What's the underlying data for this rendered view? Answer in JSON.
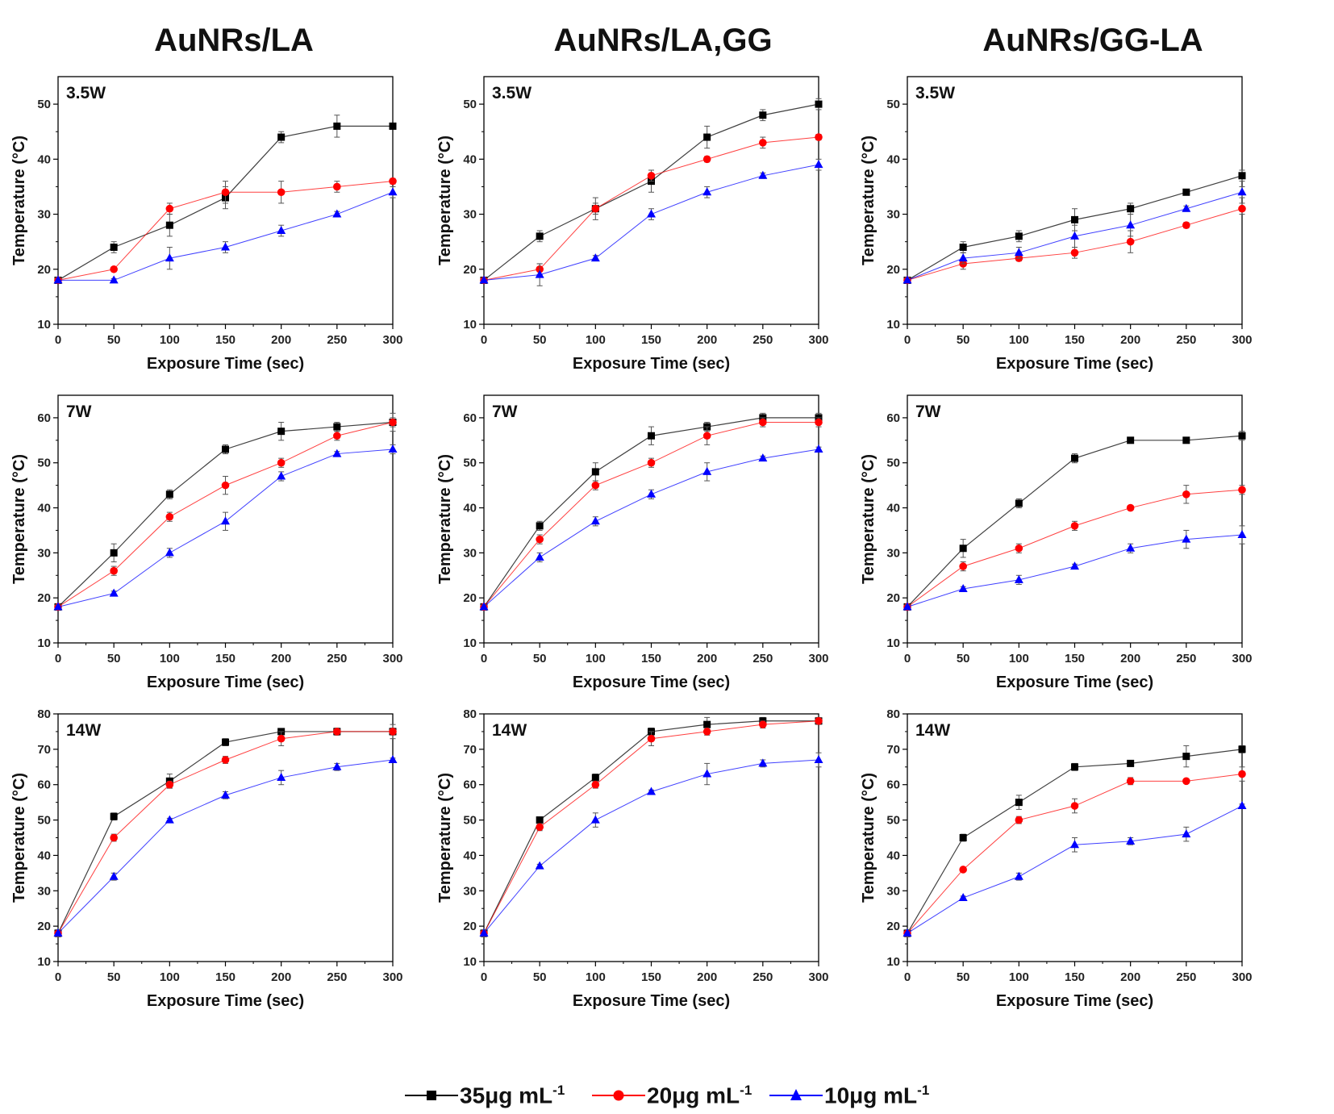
{
  "column_titles": [
    "AuNRs/LA",
    "AuNRs/LA,GG",
    "AuNRs/GG-LA"
  ],
  "legend": [
    {
      "label": "35μg mL",
      "sup": "-1",
      "color": "#000000",
      "marker": "square"
    },
    {
      "label": "20μg mL",
      "sup": "-1",
      "color": "#ff0000",
      "marker": "circle"
    },
    {
      "label": "10μg mL",
      "sup": "-1",
      "color": "#0000ff",
      "marker": "triangle"
    }
  ],
  "chart_data": [
    {
      "type": "line",
      "title": "AuNRs/LA",
      "panel_label": "3.5W",
      "xlabel": "Exposure Time (sec)",
      "ylabel": "Temperature (°C)",
      "x": [
        0,
        50,
        100,
        150,
        200,
        250,
        300
      ],
      "xlim": [
        0,
        300
      ],
      "ylim": [
        10,
        55
      ],
      "yticks": [
        10,
        20,
        30,
        40,
        50
      ],
      "series": [
        {
          "name": "35μg mL-1",
          "values": [
            18,
            24,
            28,
            33,
            44,
            46,
            46
          ],
          "errors": [
            0.5,
            1,
            2,
            2,
            1,
            2,
            0.3
          ]
        },
        {
          "name": "20μg mL-1",
          "values": [
            18,
            20,
            31,
            34,
            34,
            35,
            36
          ],
          "errors": [
            0.5,
            0.3,
            1,
            2,
            2,
            1,
            0.5
          ]
        },
        {
          "name": "10μg mL-1",
          "values": [
            18,
            18,
            22,
            24,
            27,
            30,
            34
          ],
          "errors": [
            0.5,
            0.3,
            2,
            1,
            1,
            0.5,
            1
          ]
        }
      ]
    },
    {
      "type": "line",
      "title": "AuNRs/LA,GG",
      "panel_label": "3.5W",
      "xlabel": "Exposure Time (sec)",
      "ylabel": "Temperature (°C)",
      "x": [
        0,
        50,
        100,
        150,
        200,
        250,
        300
      ],
      "xlim": [
        0,
        300
      ],
      "ylim": [
        10,
        55
      ],
      "yticks": [
        10,
        20,
        30,
        40,
        50
      ],
      "series": [
        {
          "name": "35μg mL-1",
          "values": [
            18,
            26,
            31,
            36,
            44,
            48,
            50
          ],
          "errors": [
            0.5,
            1,
            1,
            2,
            2,
            1,
            1
          ]
        },
        {
          "name": "20μg mL-1",
          "values": [
            18,
            20,
            31,
            37,
            40,
            43,
            44
          ],
          "errors": [
            0.5,
            1,
            2,
            1,
            0.5,
            1,
            0.5
          ]
        },
        {
          "name": "10μg mL-1",
          "values": [
            18,
            19,
            22,
            30,
            34,
            37,
            39
          ],
          "errors": [
            0.5,
            2,
            0.5,
            1,
            1,
            0.5,
            1
          ]
        }
      ]
    },
    {
      "type": "line",
      "title": "AuNRs/GG-LA",
      "panel_label": "3.5W",
      "xlabel": "Exposure Time (sec)",
      "ylabel": "Temperature (°C)",
      "x": [
        0,
        50,
        100,
        150,
        200,
        250,
        300
      ],
      "xlim": [
        0,
        300
      ],
      "ylim": [
        10,
        55
      ],
      "yticks": [
        10,
        20,
        30,
        40,
        50
      ],
      "series": [
        {
          "name": "35μg mL-1",
          "values": [
            18,
            24,
            26,
            29,
            31,
            34,
            37
          ],
          "errors": [
            0.5,
            1,
            1,
            2,
            1,
            0.5,
            1
          ]
        },
        {
          "name": "20μg mL-1",
          "values": [
            18,
            21,
            22,
            23,
            25,
            28,
            31
          ],
          "errors": [
            0.5,
            1,
            0.5,
            1,
            2,
            0.5,
            1
          ]
        },
        {
          "name": "10μg mL-1",
          "values": [
            18,
            22,
            23,
            26,
            28,
            31,
            34
          ],
          "errors": [
            0.5,
            1,
            1,
            2,
            2,
            0.5,
            1
          ]
        }
      ]
    },
    {
      "type": "line",
      "title": "AuNRs/LA",
      "panel_label": "7W",
      "xlabel": "Exposure Time (sec)",
      "ylabel": "Temperature (°C)",
      "x": [
        0,
        50,
        100,
        150,
        200,
        250,
        300
      ],
      "xlim": [
        0,
        300
      ],
      "ylim": [
        10,
        65
      ],
      "yticks": [
        10,
        20,
        30,
        40,
        50,
        60
      ],
      "series": [
        {
          "name": "35μg mL-1",
          "values": [
            18,
            30,
            43,
            53,
            57,
            58,
            59
          ],
          "errors": [
            0.5,
            2,
            1,
            1,
            2,
            1,
            2
          ]
        },
        {
          "name": "20μg mL-1",
          "values": [
            18,
            26,
            38,
            45,
            50,
            56,
            59
          ],
          "errors": [
            0.5,
            1,
            1,
            2,
            1,
            1,
            1
          ]
        },
        {
          "name": "10μg mL-1",
          "values": [
            18,
            21,
            30,
            37,
            47,
            52,
            53
          ],
          "errors": [
            0.5,
            0.5,
            1,
            2,
            1,
            0.5,
            1
          ]
        }
      ]
    },
    {
      "type": "line",
      "title": "AuNRs/LA,GG",
      "panel_label": "7W",
      "xlabel": "Exposure Time (sec)",
      "ylabel": "Temperature (°C)",
      "x": [
        0,
        50,
        100,
        150,
        200,
        250,
        300
      ],
      "xlim": [
        0,
        300
      ],
      "ylim": [
        10,
        65
      ],
      "yticks": [
        10,
        20,
        30,
        40,
        50,
        60
      ],
      "series": [
        {
          "name": "35μg mL-1",
          "values": [
            18,
            36,
            48,
            56,
            58,
            60,
            60
          ],
          "errors": [
            0.5,
            1,
            2,
            2,
            1,
            1,
            1
          ]
        },
        {
          "name": "20μg mL-1",
          "values": [
            18,
            33,
            45,
            50,
            56,
            59,
            59
          ],
          "errors": [
            0.5,
            1,
            1,
            1,
            2,
            1,
            1
          ]
        },
        {
          "name": "10μg mL-1",
          "values": [
            18,
            29,
            37,
            43,
            48,
            51,
            53
          ],
          "errors": [
            0.5,
            1,
            1,
            1,
            2,
            0.5,
            0.5
          ]
        }
      ]
    },
    {
      "type": "line",
      "title": "AuNRs/GG-LA",
      "panel_label": "7W",
      "xlabel": "Exposure Time (sec)",
      "ylabel": "Temperature (°C)",
      "x": [
        0,
        50,
        100,
        150,
        200,
        250,
        300
      ],
      "xlim": [
        0,
        300
      ],
      "ylim": [
        10,
        65
      ],
      "yticks": [
        10,
        20,
        30,
        40,
        50,
        60
      ],
      "series": [
        {
          "name": "35μg mL-1",
          "values": [
            18,
            31,
            41,
            51,
            55,
            55,
            56
          ],
          "errors": [
            0.5,
            2,
            1,
            1,
            0.5,
            0.5,
            1
          ]
        },
        {
          "name": "20μg mL-1",
          "values": [
            18,
            27,
            31,
            36,
            40,
            43,
            44
          ],
          "errors": [
            0.5,
            1,
            1,
            1,
            0.5,
            2,
            1
          ]
        },
        {
          "name": "10μg mL-1",
          "values": [
            18,
            22,
            24,
            27,
            31,
            33,
            34
          ],
          "errors": [
            0.5,
            0.5,
            1,
            0.5,
            1,
            2,
            2
          ]
        }
      ]
    },
    {
      "type": "line",
      "title": "AuNRs/LA",
      "panel_label": "14W",
      "xlabel": "Exposure Time (sec)",
      "ylabel": "Temperature (°C)",
      "x": [
        0,
        50,
        100,
        150,
        200,
        250,
        300
      ],
      "xlim": [
        0,
        300
      ],
      "ylim": [
        10,
        80
      ],
      "yticks": [
        10,
        20,
        30,
        40,
        50,
        60,
        70,
        80
      ],
      "series": [
        {
          "name": "35μg mL-1",
          "values": [
            18,
            51,
            61,
            72,
            75,
            75,
            75
          ],
          "errors": [
            1,
            1,
            2,
            1,
            0.5,
            1,
            2
          ]
        },
        {
          "name": "20μg mL-1",
          "values": [
            18,
            45,
            60,
            67,
            73,
            75,
            75
          ],
          "errors": [
            1,
            1,
            1,
            1,
            2,
            1,
            1
          ]
        },
        {
          "name": "10μg mL-1",
          "values": [
            18,
            34,
            50,
            57,
            62,
            65,
            67
          ],
          "errors": [
            1,
            1,
            0.5,
            1,
            2,
            1,
            0.5
          ]
        }
      ]
    },
    {
      "type": "line",
      "title": "AuNRs/LA,GG",
      "panel_label": "14W",
      "xlabel": "Exposure Time (sec)",
      "ylabel": "Temperature (°C)",
      "x": [
        0,
        50,
        100,
        150,
        200,
        250,
        300
      ],
      "xlim": [
        0,
        300
      ],
      "ylim": [
        10,
        80
      ],
      "yticks": [
        10,
        20,
        30,
        40,
        50,
        60,
        70,
        80
      ],
      "series": [
        {
          "name": "35μg mL-1",
          "values": [
            18,
            50,
            62,
            75,
            77,
            78,
            78
          ],
          "errors": [
            1,
            0.5,
            1,
            1,
            2,
            1,
            0.5
          ]
        },
        {
          "name": "20μg mL-1",
          "values": [
            18,
            48,
            60,
            73,
            75,
            77,
            78
          ],
          "errors": [
            1,
            1,
            1,
            2,
            1,
            1,
            1
          ]
        },
        {
          "name": "10μg mL-1",
          "values": [
            18,
            37,
            50,
            58,
            63,
            66,
            67
          ],
          "errors": [
            1,
            0.5,
            2,
            0.5,
            3,
            1,
            2
          ]
        }
      ]
    },
    {
      "type": "line",
      "title": "AuNRs/GG-LA",
      "panel_label": "14W",
      "xlabel": "Exposure Time (sec)",
      "ylabel": "Temperature (°C)",
      "x": [
        0,
        50,
        100,
        150,
        200,
        250,
        300
      ],
      "xlim": [
        0,
        300
      ],
      "ylim": [
        10,
        80
      ],
      "yticks": [
        10,
        20,
        30,
        40,
        50,
        60,
        70,
        80
      ],
      "series": [
        {
          "name": "35μg mL-1",
          "values": [
            18,
            45,
            55,
            65,
            66,
            68,
            70
          ],
          "errors": [
            1,
            1,
            2,
            1,
            0.5,
            3,
            1
          ]
        },
        {
          "name": "20μg mL-1",
          "values": [
            18,
            36,
            50,
            54,
            61,
            61,
            63
          ],
          "errors": [
            1,
            0.5,
            1,
            2,
            1,
            0.5,
            2
          ]
        },
        {
          "name": "10μg mL-1",
          "values": [
            18,
            28,
            34,
            43,
            44,
            46,
            54
          ],
          "errors": [
            1,
            0.5,
            1,
            2,
            1,
            2,
            0.5
          ]
        }
      ]
    }
  ]
}
